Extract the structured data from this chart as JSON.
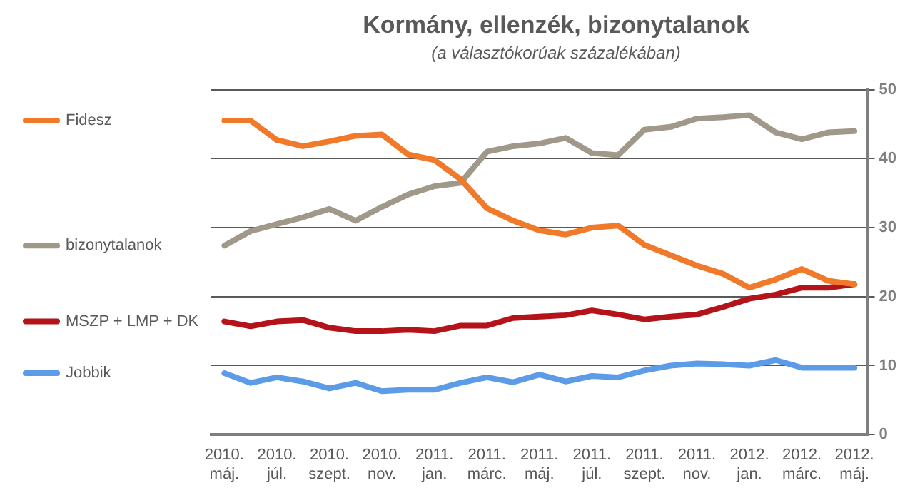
{
  "chart_data": {
    "type": "line",
    "title": "Kormány, ellenzék, bizonytalanok",
    "subtitle": "(a választókorúak százalékában)",
    "categories": [
      "2010. máj.",
      null,
      "2010. júl.",
      null,
      "2010. szept.",
      null,
      "2010. nov.",
      null,
      "2011. jan.",
      null,
      "2011. márc.",
      null,
      "2011. máj.",
      null,
      "2011. júl.",
      null,
      "2011. szept.",
      null,
      "2011. nov.",
      null,
      "2012. jan.",
      null,
      "2012. márc.",
      null,
      "2012. máj."
    ],
    "series": [
      {
        "name": "Fidesz",
        "color": "#f07a2a",
        "values": [
          45.5,
          45.5,
          42.7,
          41.8,
          42.5,
          43.3,
          43.5,
          40.6,
          39.8,
          37,
          32.8,
          31,
          29.6,
          29,
          30,
          30.3,
          27.5,
          26,
          24.5,
          23.3,
          21.3,
          22.5,
          24,
          22.3,
          21.8
        ]
      },
      {
        "name": "bizonytalanok",
        "color": "#a09888",
        "values": [
          27.4,
          29.5,
          30.5,
          31.5,
          32.7,
          31,
          33,
          34.8,
          36,
          36.5,
          41,
          41.8,
          42.2,
          43,
          40.8,
          40.5,
          44.2,
          44.6,
          45.8,
          46,
          46.3,
          43.8,
          42.8,
          43.8,
          44
        ]
      },
      {
        "name": "MSZP + LMP + DK",
        "color": "#b4131a",
        "values": [
          16.4,
          15.7,
          16.4,
          16.6,
          15.5,
          15,
          15,
          15.2,
          15,
          15.8,
          15.8,
          16.9,
          17.1,
          17.3,
          18,
          17.4,
          16.7,
          17.1,
          17.4,
          18.5,
          19.7,
          20.3,
          21.3,
          21.3,
          21.8
        ]
      },
      {
        "name": "Jobbik",
        "color": "#5b9be8",
        "values": [
          8.9,
          7.5,
          8.3,
          7.7,
          6.7,
          7.5,
          6.3,
          6.5,
          6.5,
          7.5,
          8.3,
          7.6,
          8.7,
          7.7,
          8.5,
          8.3,
          9.3,
          10,
          10.3,
          10.2,
          10,
          10.8,
          9.7,
          9.7,
          9.7
        ]
      }
    ],
    "ylim": [
      0,
      50
    ],
    "yticks": [
      0,
      10,
      20,
      30,
      40,
      50
    ],
    "grid": "y",
    "legend": "left",
    "marker": "none",
    "line_style": "solid"
  }
}
